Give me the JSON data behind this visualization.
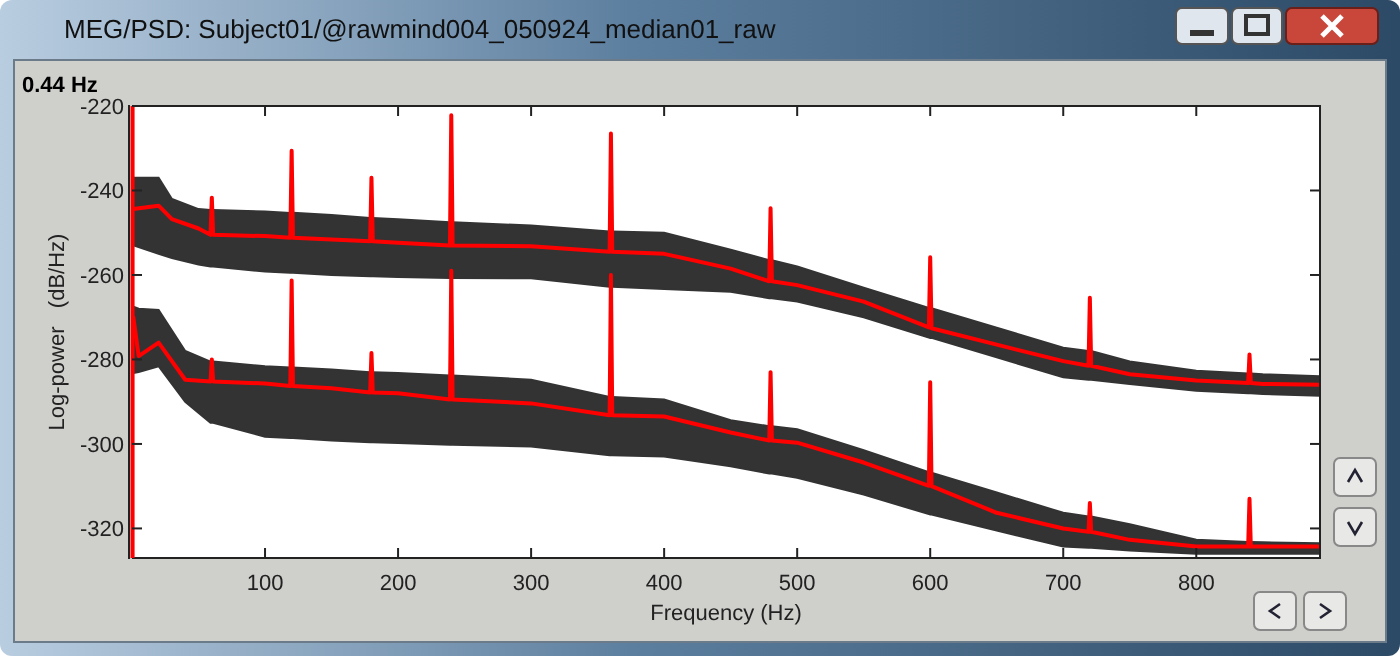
{
  "chart_data": {
    "type": "line",
    "title": "MEG/PSD: Subject01/@rawmind004_050924_median01_raw",
    "xlabel": "Frequency (Hz)",
    "ylabel": "Log-power   (dB/Hz)",
    "xlim": [
      0,
      893
    ],
    "ylim": [
      -327,
      -220
    ],
    "xticks": [
      100,
      200,
      300,
      400,
      500,
      600,
      700,
      800
    ],
    "yticks": [
      -220,
      -240,
      -260,
      -280,
      -300,
      -320
    ],
    "grid": false,
    "marker": "none",
    "line_style": "solid",
    "ref_lines": [
      {
        "axis": "x",
        "value": 0.44,
        "label": "0.44 Hz",
        "color": "#ff0000"
      }
    ],
    "series": [
      {
        "color": "#ff0000",
        "x": [
          1,
          20,
          30,
          50,
          59,
          60,
          61,
          100,
          119,
          120,
          121,
          150,
          179,
          180,
          181,
          200,
          239,
          240,
          241,
          300,
          359,
          360,
          361,
          400,
          450,
          479,
          480,
          481,
          500,
          550,
          599,
          600,
          601,
          650,
          700,
          719,
          720,
          721,
          750,
          800,
          839,
          840,
          841,
          850,
          893
        ],
        "values": [
          -244.4,
          -243.6,
          -246.8,
          -249,
          -250.5,
          -241.7,
          -250.5,
          -250.8,
          -251.2,
          -230.6,
          -251.2,
          -251.6,
          -252,
          -237,
          -252,
          -252.4,
          -253,
          -222.2,
          -253,
          -253.2,
          -254.5,
          -226.5,
          -254.5,
          -255,
          -258.5,
          -261.5,
          -244.2,
          -261.5,
          -262.4,
          -266.3,
          -272.4,
          -255.8,
          -272.6,
          -276.5,
          -280.4,
          -281.5,
          -265.4,
          -281.5,
          -283.5,
          -285,
          -285.6,
          -278.8,
          -285.6,
          -285.8,
          -286
        ],
        "lower": [
          -253,
          -255,
          -256,
          -257.5,
          -258,
          -258,
          -258,
          -259.2,
          -259.5,
          -259.5,
          -259.5,
          -260,
          -260.3,
          -260.3,
          -260.3,
          -260.5,
          -260.7,
          -260.7,
          -260.7,
          -260.8,
          -262.8,
          -262.8,
          -262.8,
          -263.3,
          -264,
          -265.5,
          -265.5,
          -265.5,
          -266.3,
          -270,
          -274.8,
          -274.9,
          -274.9,
          -279.5,
          -284.2,
          -284.8,
          -284.8,
          -284.8,
          -285.8,
          -287.4,
          -288,
          -288,
          -288,
          -288.2,
          -288.6
        ],
        "upper": [
          -237,
          -237,
          -242,
          -244.4,
          -244.6,
          -244.6,
          -244.6,
          -245,
          -245.3,
          -245.3,
          -245.3,
          -245.8,
          -246.5,
          -246.5,
          -246.5,
          -246.8,
          -247.5,
          -247.5,
          -247.5,
          -248.3,
          -249.7,
          -249.7,
          -249.7,
          -250,
          -254,
          -256.5,
          -256.5,
          -256.5,
          -258,
          -263,
          -267.8,
          -267.9,
          -267.9,
          -272.5,
          -277.2,
          -278,
          -278,
          -278,
          -280.5,
          -282.7,
          -283.3,
          -283.3,
          -283.3,
          -283.5,
          -284
        ]
      },
      {
        "color": "#ff0000",
        "x": [
          1,
          5,
          20,
          40,
          59,
          60,
          61,
          100,
          119,
          120,
          121,
          150,
          179,
          180,
          181,
          200,
          239,
          240,
          241,
          300,
          359,
          360,
          361,
          400,
          450,
          479,
          480,
          481,
          500,
          550,
          599,
          600,
          601,
          650,
          700,
          719,
          720,
          721,
          750,
          800,
          839,
          840,
          841,
          850,
          893
        ],
        "values": [
          -270,
          -279.2,
          -276,
          -284.8,
          -285.2,
          -280,
          -285.2,
          -285.7,
          -286.3,
          -261.3,
          -286.3,
          -286.8,
          -287.8,
          -278.5,
          -287.8,
          -288,
          -289.5,
          -259,
          -289.5,
          -290.4,
          -293.2,
          -260,
          -293.2,
          -293.5,
          -297.3,
          -299.2,
          -283,
          -299.2,
          -299.7,
          -304.4,
          -309.9,
          -285.4,
          -310,
          -316.3,
          -320,
          -320.8,
          -314,
          -320.8,
          -322.7,
          -324.3,
          -324.3,
          -313,
          -324.3,
          -324.3,
          -324.3
        ],
        "lower": [
          -283.2,
          -283,
          -281.6,
          -290,
          -295,
          -295,
          -295,
          -298.3,
          -298.6,
          -298.6,
          -298.6,
          -299.2,
          -299.6,
          -299.6,
          -299.6,
          -299.8,
          -300.2,
          -300.2,
          -300.2,
          -300.6,
          -302.7,
          -302.7,
          -302.7,
          -303,
          -305.3,
          -307,
          -307,
          -307,
          -308,
          -312,
          -316.6,
          -316.7,
          -316.7,
          -320.5,
          -324.3,
          -324.6,
          -324.6,
          -324.6,
          -325.2,
          -326,
          -326,
          -326,
          -326,
          -326,
          -326
        ],
        "upper": [
          -267.5,
          -268,
          -268.3,
          -278,
          -280.5,
          -280.5,
          -280.5,
          -281.6,
          -281.9,
          -281.9,
          -281.9,
          -282.4,
          -283,
          -283,
          -283,
          -283.2,
          -283.8,
          -283.8,
          -283.8,
          -284.8,
          -288.9,
          -288.9,
          -288.9,
          -289.5,
          -294.4,
          -295.8,
          -295.8,
          -295.8,
          -296.5,
          -301.5,
          -306.7,
          -306.8,
          -306.8,
          -311.5,
          -316.3,
          -317.2,
          -317.2,
          -317.2,
          -319,
          -322.7,
          -323.2,
          -323.2,
          -323.2,
          -323.3,
          -323.5
        ]
      }
    ]
  }
}
